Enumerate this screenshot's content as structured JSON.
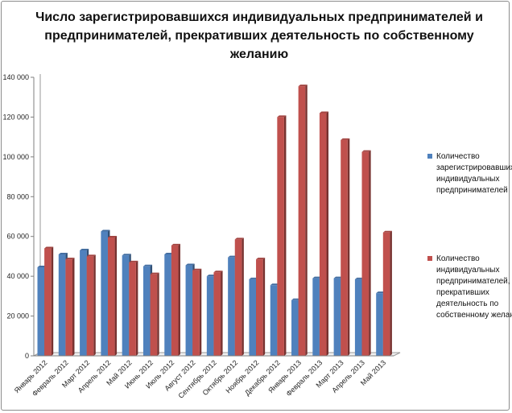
{
  "chart_data": {
    "type": "bar",
    "title_lines": [
      "Число зарегистрировавшихся индивидуальных предпринимателей и",
      "предпринимателей, прекративших деятельность по собственному",
      "желанию"
    ],
    "categories": [
      "Январь 2012",
      "Февраль 2012",
      "Март 2012",
      "Апрель 2012",
      "Май 2012",
      "Июнь 2012",
      "Июль 2012",
      "Август 2012",
      "Сентябрь 2012",
      "Октябрь 2012",
      "Ноябрь 2012",
      "Декабрь 2012",
      "Январь 2013",
      "Февраль 2013",
      "Март 2013",
      "Апрель 2013",
      "Май 2013"
    ],
    "series": [
      {
        "name": "Количество зарегистрировавшихся индивидуальных предпринимателей",
        "color": "#4f81bd",
        "values": [
          44500,
          51000,
          53000,
          62500,
          50500,
          45000,
          51000,
          45500,
          40000,
          49500,
          38500,
          35500,
          28000,
          39000,
          39000,
          38500,
          31500
        ]
      },
      {
        "name": "Количество индивидуальных предпринимателей, прекративших деятельность по собственному желанию",
        "color": "#c0504d",
        "values": [
          54000,
          48500,
          50000,
          59500,
          47000,
          41000,
          55500,
          43000,
          42000,
          58500,
          48500,
          120000,
          135500,
          122000,
          108500,
          102500,
          62000
        ]
      }
    ],
    "yticks": [
      "0",
      "20 000",
      "40 000",
      "60 000",
      "80 000",
      "100 000",
      "120 000",
      "140 000"
    ],
    "ylim": [
      0,
      140000
    ],
    "grid": false,
    "legend_position": "right"
  }
}
